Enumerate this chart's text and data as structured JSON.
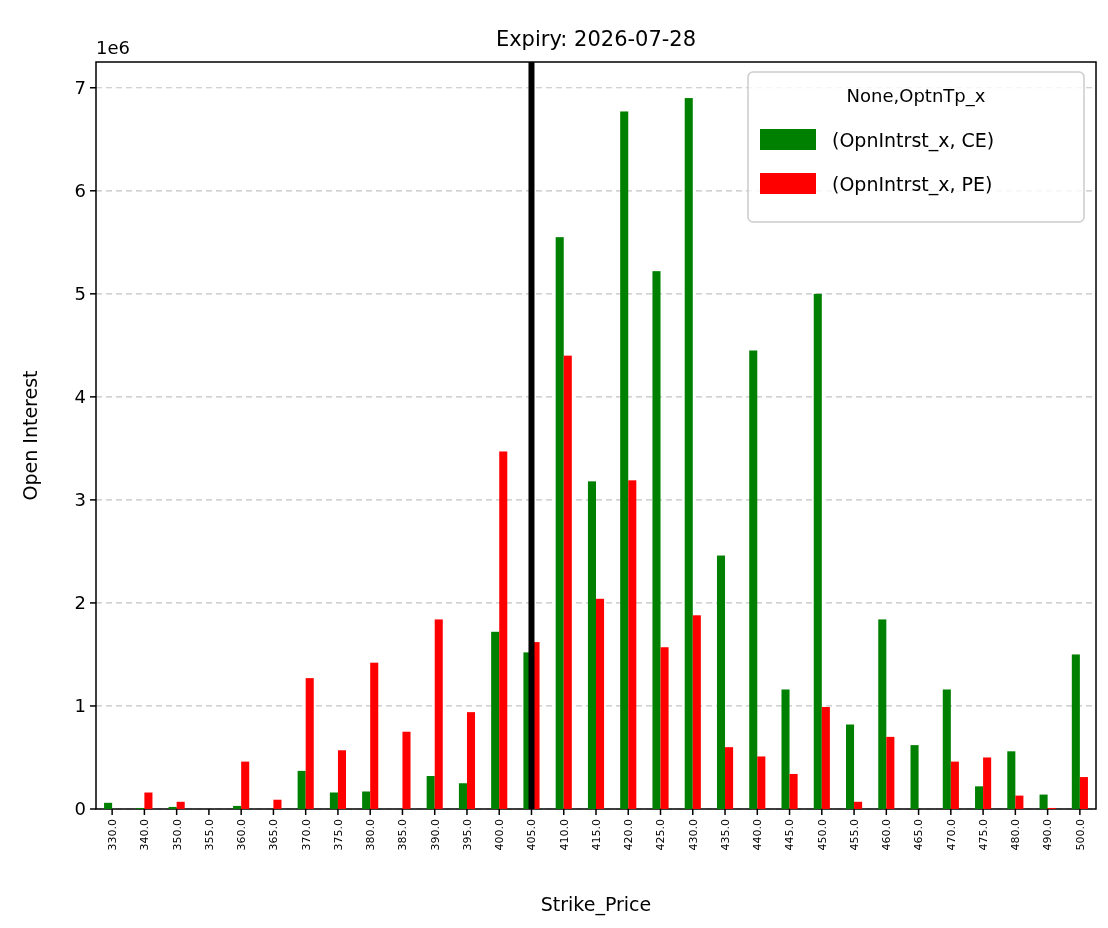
{
  "chart_data": {
    "type": "bar",
    "title": "Expiry: 2026-07-28",
    "xlabel": "Strike_Price",
    "ylabel": "Open Interest",
    "categories": [
      "330.0",
      "340.0",
      "350.0",
      "355.0",
      "360.0",
      "365.0",
      "370.0",
      "375.0",
      "380.0",
      "385.0",
      "390.0",
      "395.0",
      "400.0",
      "405.0",
      "410.0",
      "415.0",
      "420.0",
      "425.0",
      "430.0",
      "435.0",
      "440.0",
      "445.0",
      "450.0",
      "455.0",
      "460.0",
      "465.0",
      "470.0",
      "475.0",
      "480.0",
      "490.0",
      "500.0"
    ],
    "series": [
      {
        "name": "(OpnIntrst_x, CE)",
        "color": "#008000",
        "values": [
          0.06,
          0.01,
          0.02,
          0,
          0.03,
          0,
          0.37,
          0.16,
          0.17,
          0,
          0.32,
          0.25,
          1.72,
          1.52,
          5.55,
          3.18,
          6.77,
          5.22,
          6.9,
          2.46,
          4.45,
          1.16,
          5.0,
          0.82,
          1.84,
          0.62,
          1.16,
          0.22,
          0.56,
          0.14,
          1.5
        ]
      },
      {
        "name": "(OpnIntrst_x, PE)",
        "color": "#ff0000",
        "values": [
          0,
          0.16,
          0.07,
          0,
          0.46,
          0.09,
          1.27,
          0.57,
          1.42,
          0.75,
          1.84,
          0.94,
          3.47,
          1.62,
          4.4,
          2.04,
          3.19,
          1.57,
          1.88,
          0.6,
          0.51,
          0.34,
          0.99,
          0.07,
          0.7,
          0,
          0.46,
          0.5,
          0.13,
          0.01,
          0.31
        ]
      }
    ],
    "ylim": [
      0,
      7.25
    ],
    "yticks": [
      0,
      1,
      2,
      3,
      4,
      5,
      6,
      7
    ],
    "annotations": [
      "1e6"
    ],
    "ref_lines": [
      {
        "axis": "x",
        "value": "405.0",
        "color": "#000000"
      }
    ],
    "legend_title": "None,OptnTp_x",
    "legend": "top right",
    "grid": "y"
  }
}
